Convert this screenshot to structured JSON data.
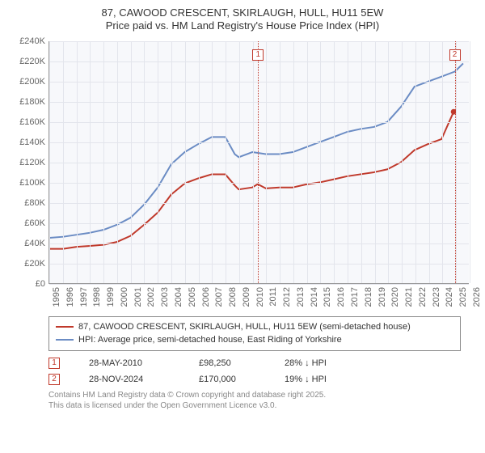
{
  "title": {
    "line1": "87, CAWOOD CRESCENT, SKIRLAUGH, HULL, HU11 5EW",
    "line2": "Price paid vs. HM Land Registry's House Price Index (HPI)"
  },
  "title_fontsize": 13,
  "title_color": "#333333",
  "chart": {
    "type": "line",
    "background_color": "#f7f8fb",
    "grid_color": "#e3e5ec",
    "axis_color": "#999999",
    "xlim": [
      1995,
      2026
    ],
    "ylim": [
      0,
      240000
    ],
    "xtick_step": 1,
    "ytick_step": 20000,
    "ytick_prefix": "£",
    "ytick_suffix": "K",
    "xtick_rotation": -90,
    "tick_fontsize": 11,
    "tick_color": "#666666",
    "series": [
      {
        "name": "price_paid",
        "label": "87, CAWOOD CRESCENT, SKIRLAUGH, HULL, HU11 5EW (semi-detached house)",
        "color": "#c0392b",
        "line_width": 2,
        "x": [
          1995,
          1996,
          1997,
          1998,
          1999,
          2000,
          2001,
          2002,
          2003,
          2004,
          2005,
          2006,
          2007,
          2008,
          2008.7,
          2009,
          2010,
          2010.4,
          2011,
          2012,
          2013,
          2014,
          2015,
          2016,
          2017,
          2018,
          2019,
          2020,
          2021,
          2022,
          2023,
          2024,
          2024.9
        ],
        "y": [
          34000,
          34000,
          36000,
          37000,
          38000,
          41000,
          47000,
          58000,
          70000,
          88000,
          99000,
          104000,
          108000,
          108000,
          97000,
          93000,
          95000,
          98250,
          94000,
          95000,
          95000,
          98000,
          100000,
          103000,
          106000,
          108000,
          110000,
          113000,
          120000,
          132000,
          138000,
          143000,
          170000
        ]
      },
      {
        "name": "hpi",
        "label": "HPI: Average price, semi-detached house, East Riding of Yorkshire",
        "color": "#6b8cc4",
        "line_width": 2,
        "x": [
          1995,
          1996,
          1997,
          1998,
          1999,
          2000,
          2001,
          2002,
          2003,
          2004,
          2005,
          2006,
          2007,
          2008,
          2008.7,
          2009,
          2010,
          2011,
          2012,
          2013,
          2014,
          2015,
          2016,
          2017,
          2018,
          2019,
          2020,
          2021,
          2022,
          2023,
          2024,
          2025,
          2025.6
        ],
        "y": [
          45000,
          46000,
          48000,
          50000,
          53000,
          58000,
          65000,
          78000,
          95000,
          118000,
          130000,
          138000,
          145000,
          145000,
          128000,
          125000,
          130000,
          128000,
          128000,
          130000,
          135000,
          140000,
          145000,
          150000,
          153000,
          155000,
          160000,
          175000,
          195000,
          200000,
          205000,
          210000,
          218000
        ]
      }
    ],
    "markers": [
      {
        "id": "1",
        "x": 2010.4,
        "label_y": 232000
      },
      {
        "id": "2",
        "x": 2024.9,
        "label_y": 232000
      }
    ],
    "marker_line_color": "#c0392b",
    "marker_box_color": "#c0392b"
  },
  "legend": {
    "border_color": "#888888",
    "fontsize": 11
  },
  "data_points": [
    {
      "id": "1",
      "date": "28-MAY-2010",
      "price": "£98,250",
      "diff": "28% ↓ HPI"
    },
    {
      "id": "2",
      "date": "28-NOV-2024",
      "price": "£170,000",
      "diff": "19% ↓ HPI"
    }
  ],
  "attribution": {
    "line1": "Contains HM Land Registry data © Crown copyright and database right 2025.",
    "line2": "This data is licensed under the Open Government Licence v3.0."
  },
  "attribution_color": "#888888"
}
